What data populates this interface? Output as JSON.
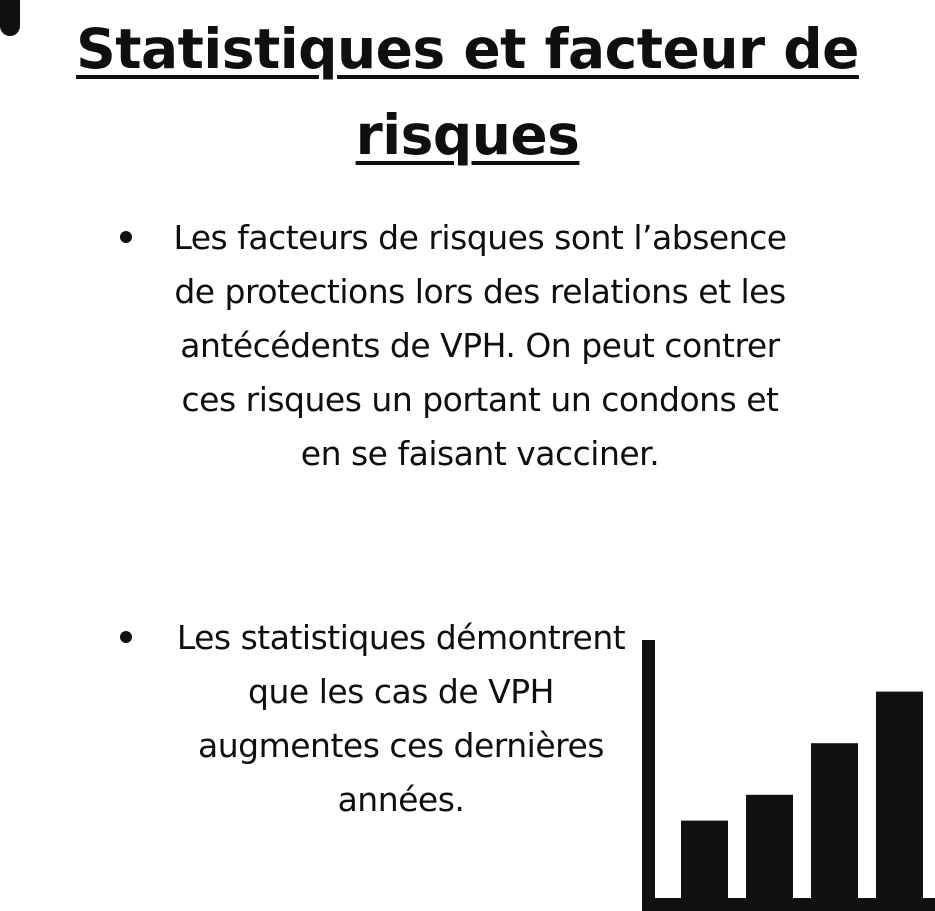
{
  "title": "Statistiques et facteur de risques",
  "bullets": [
    "Les facteurs de risques sont l’absence de protections lors des relations et les antécédents de VPH. On peut contrer ces risques un portant un condons et en se faisant vacciner.",
    "Les statistiques démontrent que les cas de VPH augmentes ces dernières années."
  ],
  "colors": {
    "ink": "#111111",
    "background": "#ffffff"
  },
  "icon": "bar-chart-icon",
  "chart_data": {
    "type": "bar",
    "categories": [
      "",
      "",
      "",
      ""
    ],
    "values": [
      3,
      4,
      6,
      8
    ],
    "title": "",
    "xlabel": "",
    "ylabel": "",
    "ylim": [
      0,
      10
    ],
    "grid": false,
    "legend": "none"
  }
}
